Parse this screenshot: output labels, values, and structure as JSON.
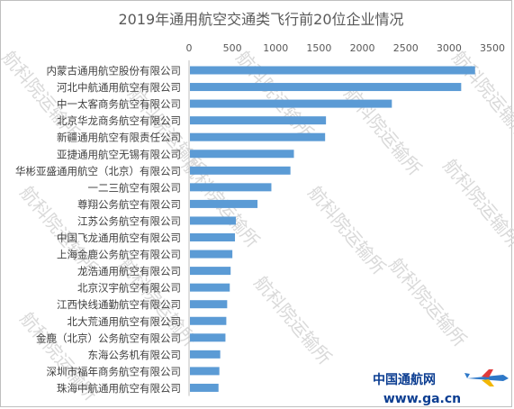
{
  "chart_data": {
    "type": "bar",
    "orientation": "horizontal",
    "title": "2019年通用航空交通类飞行前20位企业情况",
    "xlabel": "",
    "ylabel": "",
    "xlim": [
      0,
      3500
    ],
    "x_ticks": [
      0,
      500,
      1000,
      1500,
      2000,
      2500,
      3000,
      3500
    ],
    "x_tick_labels": [
      "0",
      "500",
      "1000",
      "1500",
      "2000",
      "2500",
      "3000",
      "3500"
    ],
    "x_axis_position": "top",
    "grid": false,
    "legend": "none",
    "bar_color": "#5b9bd5",
    "categories": [
      "内蒙古通用航空股份有限公司",
      "河北中航通用航空有限公司",
      "中一太客商务航空有限公司",
      "北京华龙商务航空有限公司",
      "新疆通用航空有限责任公司",
      "亚捷通用航空无锡有限公司",
      "华彬亚盛通用航空（北京）有限公司",
      "一二三航空有限公司",
      "尊翔公务航空有限公司",
      "江苏公务航空有限公司",
      "中国飞龙通用航空有限公司",
      "上海金鹿公务航空有限公司",
      "龙浩通用航空有限公司",
      "北京汉宇航空有限公司",
      "江西快线通勤航空有限公司",
      "北大荒通用航空有限公司",
      "金鹿（北京）公务航空有限公司",
      "东海公务机有限公司",
      "深圳市福年商务航空有限公司",
      "珠海中航通用航空有限公司"
    ],
    "values": [
      3300,
      3140,
      2340,
      1580,
      1570,
      1210,
      1170,
      950,
      790,
      540,
      530,
      500,
      480,
      470,
      440,
      430,
      420,
      360,
      350,
      340
    ]
  },
  "watermark": {
    "text": "航科院运输所",
    "color": "#d9d9d9"
  },
  "logo": {
    "brand_text": "中国通航网",
    "url_text": "www.ga.cn",
    "brand_color": "#0b3d91"
  }
}
